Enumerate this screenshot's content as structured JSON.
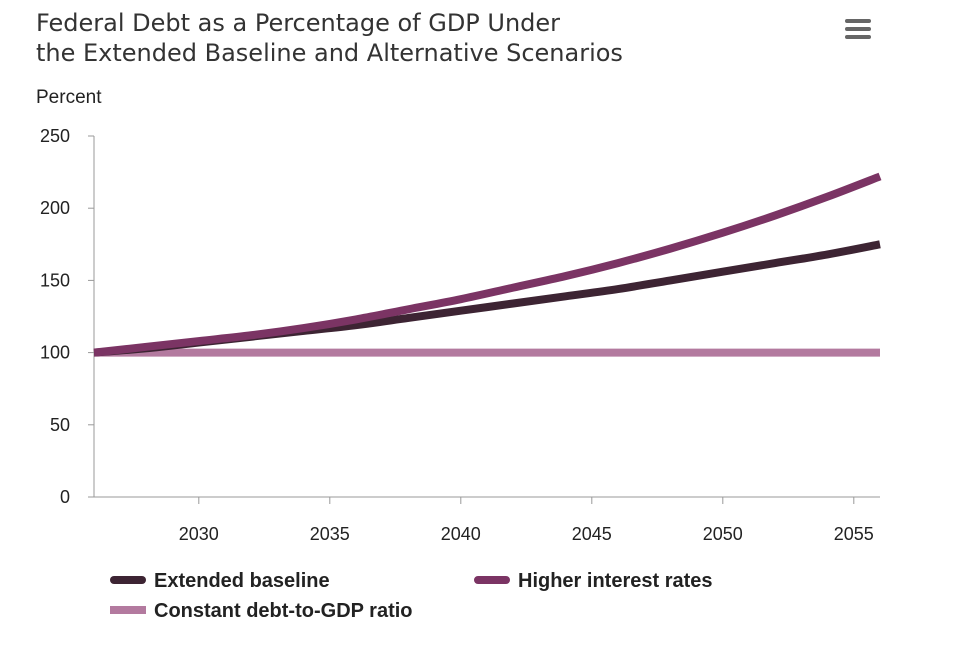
{
  "chart_data": {
    "type": "line",
    "title_lines": [
      "Federal Debt as a Percentage of GDP Under",
      "the Extended Baseline and Alternative Scenarios"
    ],
    "ylabel": "Percent",
    "xlabel": "",
    "xlim": [
      2026,
      2056
    ],
    "ylim": [
      0,
      250
    ],
    "xticks": [
      2030,
      2035,
      2040,
      2045,
      2050,
      2055
    ],
    "yticks": [
      0,
      50,
      100,
      150,
      200,
      250
    ],
    "grid": false,
    "legend_position": "bottom",
    "series": [
      {
        "name": "Extended baseline",
        "color": "#3d2433",
        "x": [
          2026,
          2028,
          2030,
          2032,
          2034,
          2036,
          2038,
          2040,
          2042,
          2044,
          2046,
          2048,
          2050,
          2052,
          2054,
          2056
        ],
        "y": [
          100,
          103,
          107,
          111,
          115,
          119,
          124,
          129,
          134,
          139,
          144,
          150,
          156,
          162,
          168,
          175
        ]
      },
      {
        "name": "Higher interest rates",
        "color": "#7b3464",
        "x": [
          2026,
          2028,
          2030,
          2032,
          2034,
          2036,
          2038,
          2040,
          2042,
          2044,
          2046,
          2048,
          2050,
          2052,
          2054,
          2056
        ],
        "y": [
          100,
          104,
          108,
          112,
          117,
          123,
          130,
          137,
          145,
          153,
          162,
          172,
          183,
          195,
          208,
          222
        ]
      },
      {
        "name": "Constant debt-to-GDP ratio",
        "color": "#b37a9f",
        "x": [
          2026,
          2056
        ],
        "y": [
          100,
          100
        ]
      }
    ]
  },
  "menu_icon": "hamburger-menu-icon"
}
